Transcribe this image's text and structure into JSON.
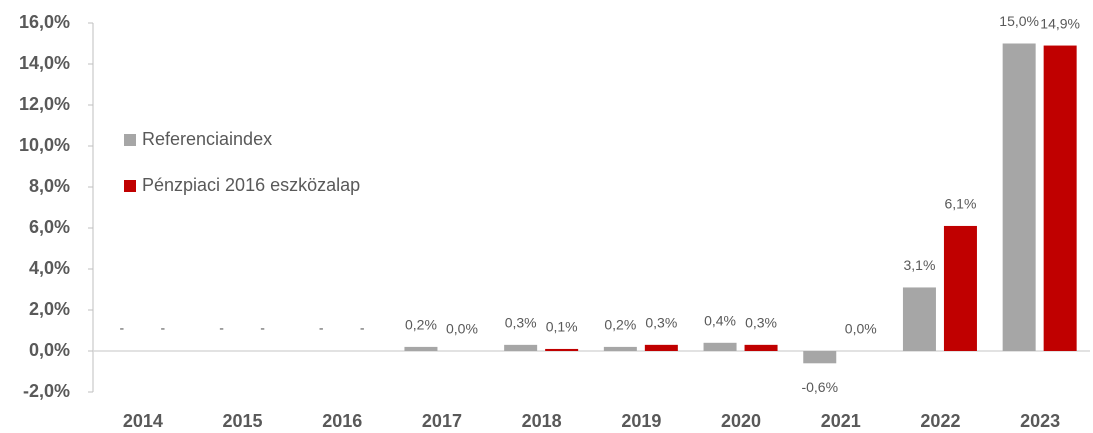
{
  "chart_data": {
    "type": "bar",
    "categories": [
      "2014",
      "2015",
      "2016",
      "2017",
      "2018",
      "2019",
      "2020",
      "2021",
      "2022",
      "2023"
    ],
    "series": [
      {
        "name": "Referenciaindex",
        "color": "#a6a6a6",
        "values": [
          null,
          null,
          null,
          0.2,
          0.3,
          0.2,
          0.4,
          -0.6,
          3.1,
          15.0
        ],
        "value_labels": [
          "-",
          "-",
          "-",
          "0,2%",
          "0,3%",
          "0,2%",
          "0,4%",
          "-0,6%",
          "3,1%",
          "15,0%"
        ]
      },
      {
        "name": "Pénzpiaci 2016 eszközalap",
        "color": "#c00000",
        "values": [
          null,
          null,
          null,
          0.0,
          0.1,
          0.3,
          0.3,
          0.0,
          6.1,
          14.9
        ],
        "value_labels": [
          "-",
          "-",
          "-",
          "0,0%",
          "0,1%",
          "0,3%",
          "0,3%",
          "0,0%",
          "6,1%",
          "14,9%"
        ]
      }
    ],
    "ylim": [
      -2,
      16
    ],
    "yticks": [
      {
        "value": -2,
        "label": "-2,0%"
      },
      {
        "value": 0,
        "label": "0,0%"
      },
      {
        "value": 2,
        "label": "2,0%"
      },
      {
        "value": 4,
        "label": "4,0%"
      },
      {
        "value": 6,
        "label": "6,0%"
      },
      {
        "value": 8,
        "label": "8,0%"
      },
      {
        "value": 10,
        "label": "10,0%"
      },
      {
        "value": 12,
        "label": "12,0%"
      },
      {
        "value": 14,
        "label": "14,0%"
      },
      {
        "value": 16,
        "label": "16,0%"
      }
    ],
    "legend": "left",
    "grid": false
  }
}
